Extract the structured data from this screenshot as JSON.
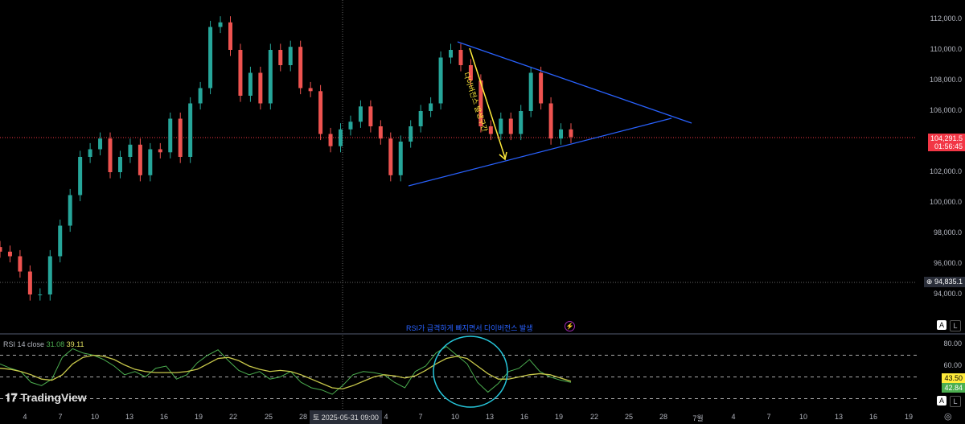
{
  "chart_data": {
    "type": "candlestick",
    "price_axis": {
      "ticks": [
        "112,000.0",
        "110,000.0",
        "108,000.0",
        "106,000.0",
        "102,000.0",
        "100,000.0",
        "98,000.0",
        "96,000.0",
        "94,000.0"
      ],
      "ylim": [
        93000,
        113000
      ]
    },
    "closes": [
      96800,
      96500,
      95500,
      94000,
      94000,
      96500,
      98500,
      100500,
      103000,
      103500,
      104200,
      102000,
      103000,
      103800,
      101800,
      103500,
      103300,
      105500,
      103000,
      106500,
      107500,
      111500,
      111800,
      110000,
      107000,
      108500,
      106500,
      110000,
      109000,
      110200,
      107500,
      107300,
      104500,
      103700,
      104800,
      105300,
      106300,
      105000,
      104200,
      101800,
      104000,
      105000,
      106000,
      106500,
      109500,
      110000,
      109000,
      108000,
      105000,
      104500,
      105500,
      104500,
      106000,
      108500,
      106500,
      104200,
      104800,
      104300
    ],
    "last_price": "104,291.5",
    "countdown": "01:56:45",
    "crosshair_price": "94,835.1",
    "time_axis": [
      "4",
      "7",
      "10",
      "13",
      "16",
      "19",
      "22",
      "25",
      "28",
      "4",
      "7",
      "10",
      "13",
      "16",
      "19",
      "22",
      "25",
      "28",
      "7월",
      "4",
      "7",
      "10",
      "13",
      "16",
      "19"
    ],
    "crosshair_time": "토 2025-05-31   09:00",
    "annotations": {
      "arrow_text": "다이버전스 발생구간",
      "rsi_note": "RSI가 급격하게 빠지면서 다이버전스 발생"
    },
    "rsi": {
      "label": "RSI",
      "params": "14 close",
      "value": "31.08",
      "ma_value": "39.11",
      "ticks": [
        "80.00",
        "60.00"
      ],
      "tag_ma": "43.50",
      "tag_rsi": "42.84",
      "values": [
        62,
        58,
        55,
        45,
        42,
        48,
        68,
        76,
        72,
        70,
        66,
        60,
        52,
        55,
        50,
        58,
        60,
        48,
        52,
        63,
        70,
        75,
        65,
        56,
        52,
        55,
        48,
        50,
        55,
        45,
        40,
        38,
        34,
        42,
        52,
        55,
        54,
        52,
        45,
        40,
        55,
        60,
        72,
        78,
        70,
        62,
        45,
        36,
        44,
        55,
        58,
        66,
        55,
        50,
        47,
        45
      ],
      "ma": [
        58,
        57,
        55,
        52,
        48,
        47,
        52,
        62,
        68,
        70,
        69,
        66,
        61,
        57,
        55,
        54,
        54,
        54,
        55,
        57,
        62,
        67,
        68,
        65,
        60,
        57,
        55,
        56,
        55,
        52,
        48,
        44,
        40,
        39,
        42,
        46,
        50,
        52,
        51,
        49,
        51,
        56,
        62,
        67,
        69,
        67,
        60,
        53,
        48,
        48,
        50,
        52,
        53,
        52,
        49,
        46
      ]
    },
    "colors": {
      "up": "#26a69a",
      "down": "#ef5350",
      "trendline": "#2962ff",
      "arrow": "#ffeb3b",
      "rsi": "#4caf50",
      "rsi_ma": "#c8c84a",
      "circle": "#26c6da"
    }
  },
  "brand": "TradingView",
  "buttons": {
    "auto": "A",
    "log": "L"
  }
}
